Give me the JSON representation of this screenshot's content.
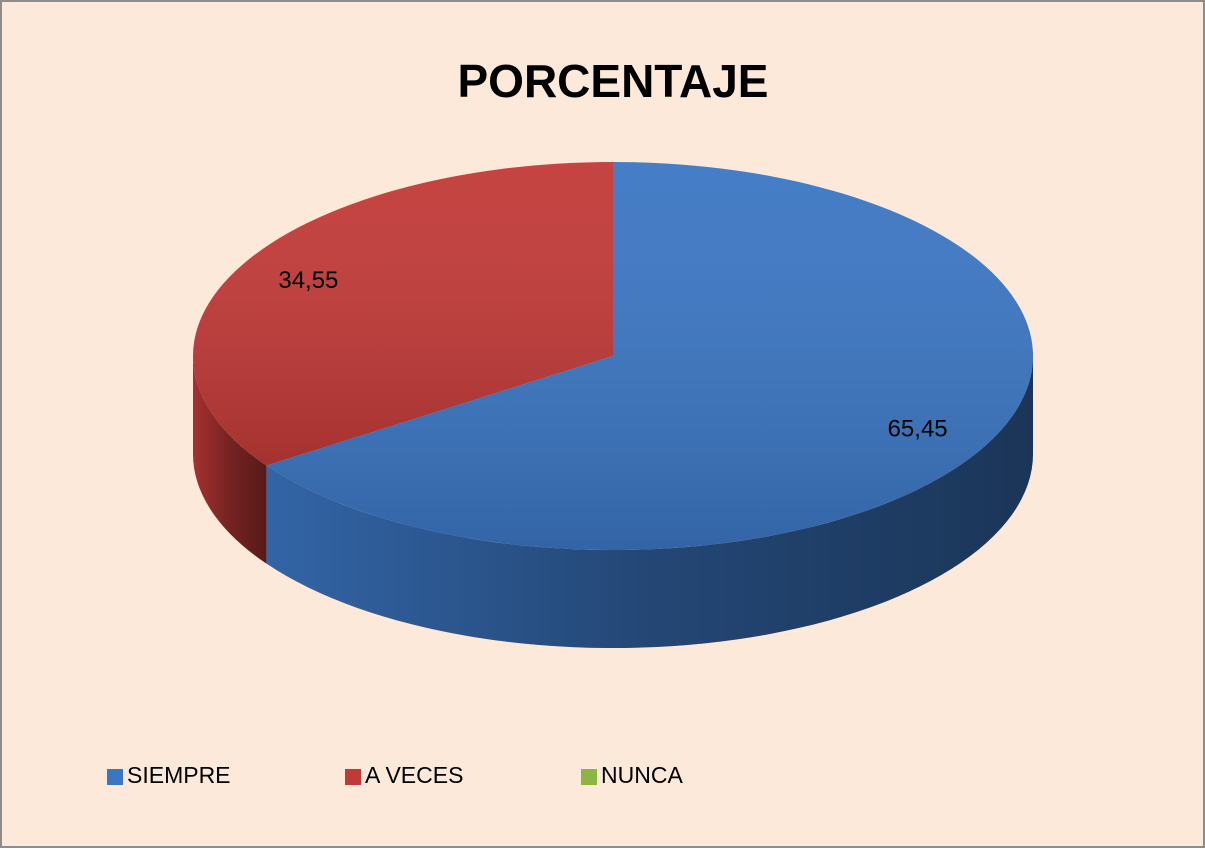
{
  "chart_data": {
    "type": "pie",
    "title": "PORCENTAJE",
    "categories": [
      "SIEMPRE",
      "A VECES",
      "NUNCA"
    ],
    "values": [
      65.45,
      34.55,
      0
    ],
    "value_labels": [
      "65,45",
      "34,55",
      null
    ],
    "colors": [
      "#3b76c3",
      "#c23a38",
      "#8db543"
    ],
    "legend": "bottom"
  }
}
